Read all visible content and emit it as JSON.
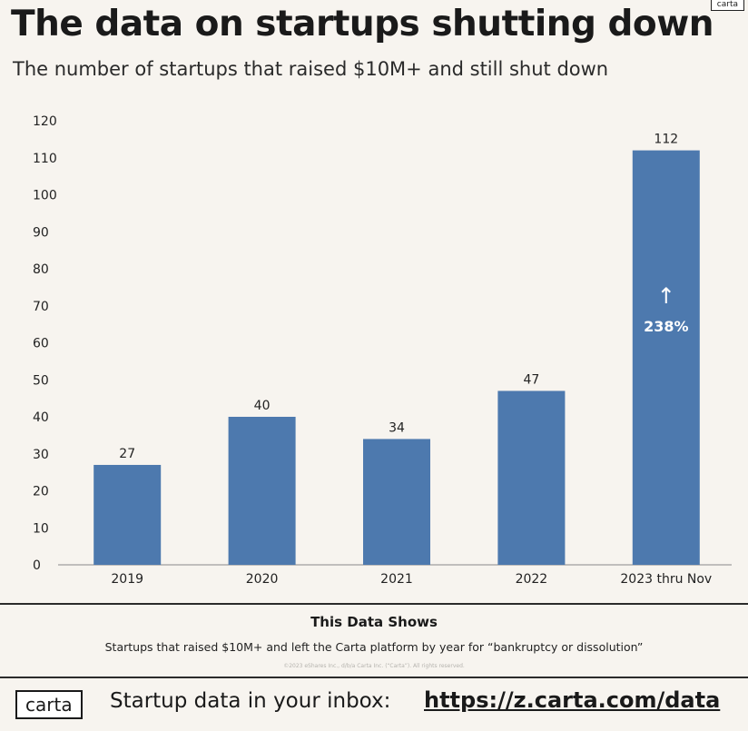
{
  "brand": {
    "logo_small": "carta",
    "logo": "carta"
  },
  "header": {
    "title": "The data on startups shutting down",
    "subtitle": "The number of startups that raised $10M+ and still shut down"
  },
  "chart_data": {
    "type": "bar",
    "title": "The data on startups shutting down",
    "categories": [
      "2019",
      "2020",
      "2021",
      "2022",
      "2023 thru Nov"
    ],
    "values": [
      27,
      40,
      34,
      47,
      112
    ],
    "data_labels": [
      "27",
      "40",
      "34",
      "47",
      "112"
    ],
    "ylim": [
      0,
      120
    ],
    "yticks": [
      "0",
      "10",
      "20",
      "30",
      "40",
      "50",
      "60",
      "70",
      "80",
      "90",
      "100",
      "110",
      "120"
    ],
    "annotation": {
      "category": "2023 thru Nov",
      "arrow": "↑",
      "text": "238%"
    },
    "bar_color": "#4d79ae",
    "grid": false
  },
  "footer": {
    "shows_title": "This Data Shows",
    "shows_desc": "Startups that raised $10M+ and left the Carta platform by year for “bankruptcy or dissolution”",
    "copyright": "©2023 eShares Inc., d/b/a Carta Inc. (“Carta”). All rights reserved.",
    "cta": "Startup data in your inbox:",
    "link": "https://z.carta.com/data"
  }
}
